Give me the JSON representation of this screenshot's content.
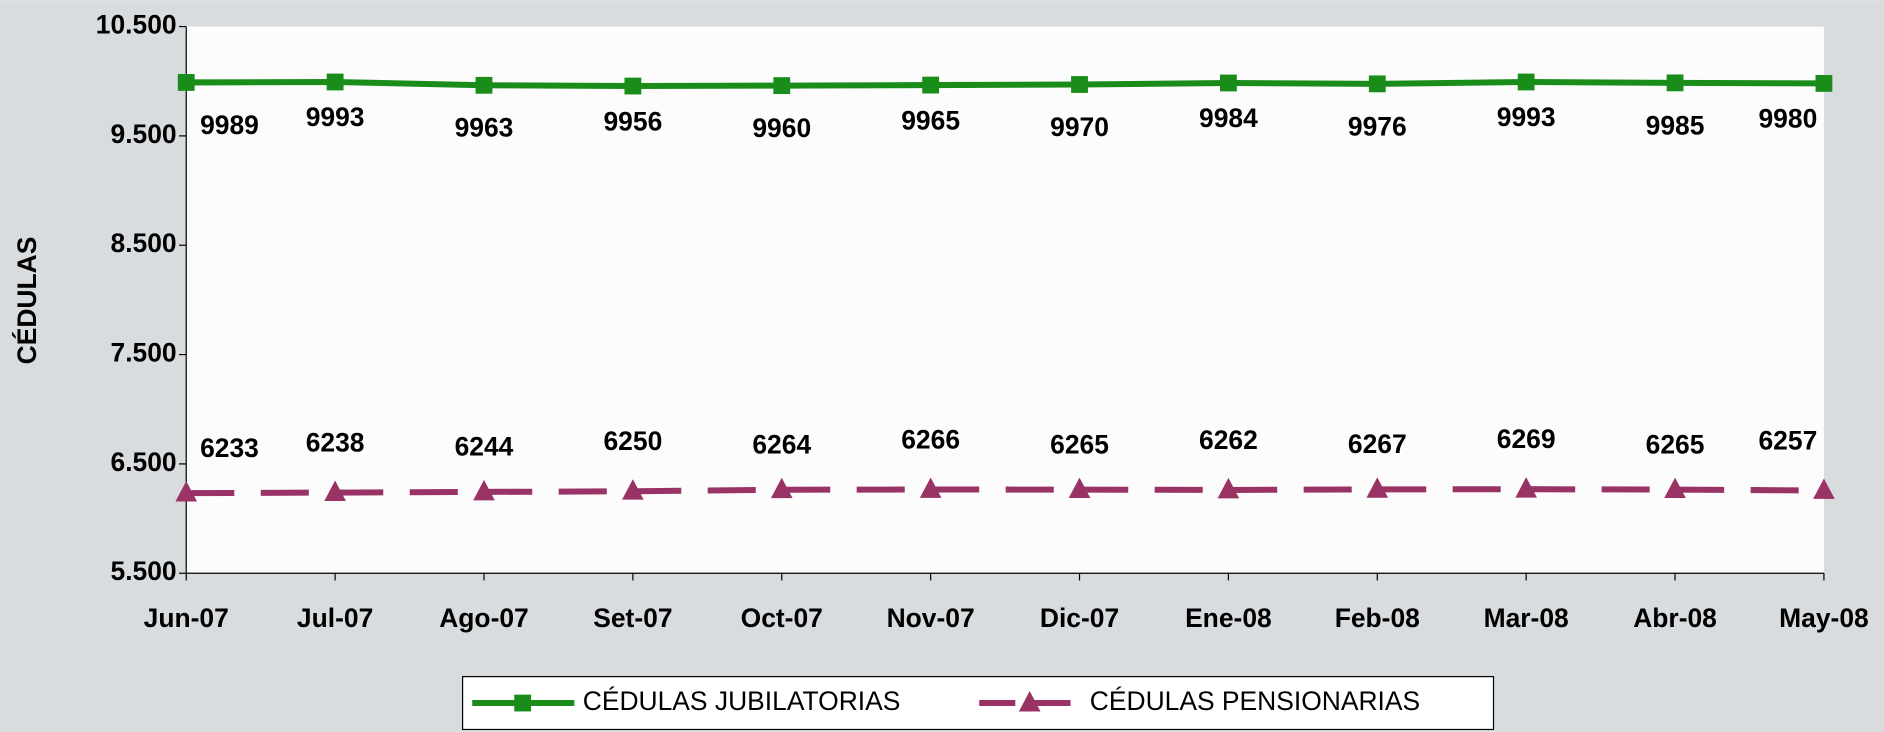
{
  "chart_data": {
    "type": "line",
    "y_label": "CÉDULAS",
    "categories": [
      "Jun-07",
      "Jul-07",
      "Ago-07",
      "Set-07",
      "Oct-07",
      "Nov-07",
      "Dic-07",
      "Ene-08",
      "Feb-08",
      "Mar-08",
      "Abr-08",
      "May-08"
    ],
    "series": [
      {
        "name": "CÉDULAS JUBILATORIAS",
        "color": "#1a8c1a",
        "marker": "square",
        "dash": false,
        "values": [
          9989,
          9993,
          9963,
          9956,
          9960,
          9965,
          9970,
          9984,
          9976,
          9993,
          9985,
          9980
        ]
      },
      {
        "name": "CÉDULAS PENSIONARIAS",
        "color": "#993366",
        "marker": "triangle",
        "dash": true,
        "values": [
          6233,
          6238,
          6244,
          6250,
          6264,
          6266,
          6265,
          6262,
          6267,
          6269,
          6265,
          6257
        ]
      }
    ],
    "ylim": [
      5500,
      10500
    ],
    "yticks": [
      {
        "value": 5500,
        "label": "5.500"
      },
      {
        "value": 6500,
        "label": "6.500"
      },
      {
        "value": 7500,
        "label": "7.500"
      },
      {
        "value": 8500,
        "label": "8.500"
      },
      {
        "value": 9500,
        "label": "9.500"
      },
      {
        "value": 10500,
        "label": "10.500"
      }
    ],
    "legend": "bottom",
    "grid": false
  }
}
